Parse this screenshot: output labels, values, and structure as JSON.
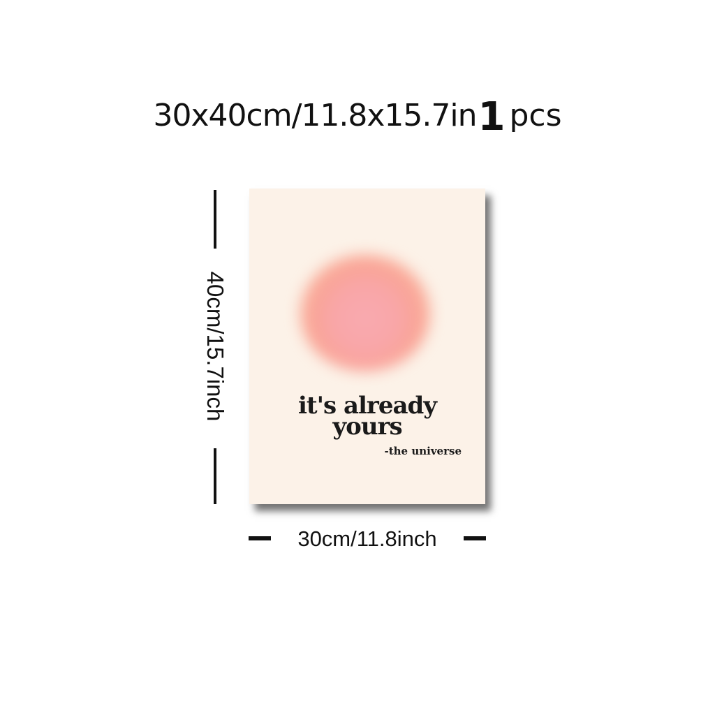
{
  "header": {
    "size_text": "30x40cm/11.8x15.7in",
    "quantity": "1",
    "unit": "pcs"
  },
  "poster": {
    "quote_line_1": "it's already",
    "quote_line_2": "yours",
    "attribution": "-the universe",
    "background_color": "#fcf2e8",
    "glow_color": "#f9a6a8"
  },
  "dimensions": {
    "height_label": "40cm/15.7inch",
    "width_label": "30cm/11.8inch"
  }
}
